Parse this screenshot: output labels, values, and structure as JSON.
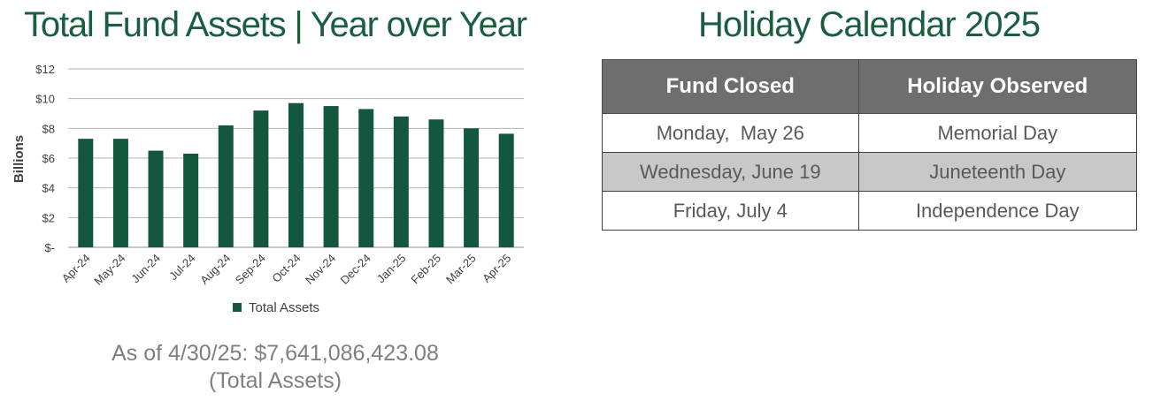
{
  "left_title": "Total Fund Assets | Year over Year",
  "right_title": "Holiday Calendar 2025",
  "chart_data": {
    "type": "bar",
    "ylabel": "Billions",
    "xlabel": "",
    "ylim": [
      0,
      12
    ],
    "y_ticks": [
      0,
      2,
      4,
      6,
      8,
      10,
      12
    ],
    "y_tick_labels": [
      "$-",
      "$2",
      "$4",
      "$6",
      "$8",
      "$10",
      "$12"
    ],
    "grid": true,
    "legend_position": "bottom-center",
    "categories": [
      "Apr-24",
      "May-24",
      "Jun-24",
      "Jul-24",
      "Aug-24",
      "Sep-24",
      "Oct-24",
      "Nov-24",
      "Dec-24",
      "Jan-25",
      "Feb-25",
      "Mar-25",
      "Apr-25"
    ],
    "series": [
      {
        "name": "Total Assets",
        "color": "#13573f",
        "values": [
          7.3,
          7.3,
          6.5,
          6.3,
          8.2,
          9.2,
          9.7,
          9.5,
          9.3,
          8.8,
          8.6,
          8.0,
          7.64
        ]
      }
    ]
  },
  "as_of": "As of 4/30/25: $7,641,086,423.08",
  "as_of_sub": "(Total Assets)",
  "holiday_table": {
    "headers": [
      "Fund Closed",
      "Holiday Observed"
    ],
    "rows": [
      [
        "Monday,  May 26",
        "Memorial Day"
      ],
      [
        "Wednesday, June 19",
        "Juneteenth Day"
      ],
      [
        "Friday, July 4",
        "Independence Day"
      ]
    ],
    "header_color": "#6e6e6e",
    "shade_color": "#c8c8c8"
  },
  "colors": {
    "title_green": "#1b5e3f",
    "bar_green": "#13573f",
    "grey_text": "#7f7f7f"
  }
}
